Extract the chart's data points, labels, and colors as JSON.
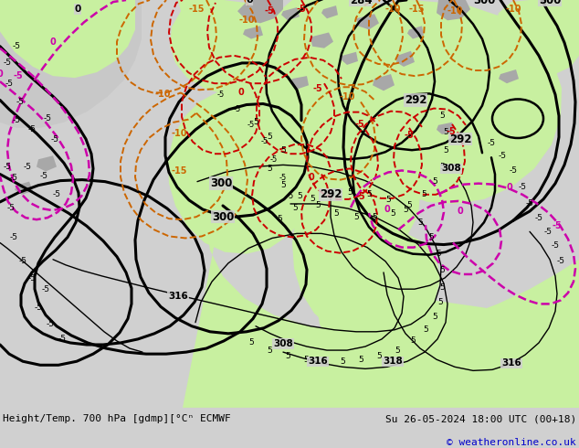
{
  "fig_width": 6.34,
  "fig_height": 4.9,
  "dpi": 100,
  "bg_color": "#d0d0d0",
  "map_bg": "#d0d0d0",
  "green_fill": "#c8f0a0",
  "gray_fill": "#a8a8a8",
  "bottom_label_left": "Height/Temp. 700 hPa [gdmp][°Cⁿ ECMWF",
  "bottom_label_right": "Su 26-05-2024 18:00 UTC (00+18)",
  "copyright": "© weatheronline.co.uk",
  "black_lw": 2.2,
  "thin_black_lw": 1.0,
  "temp_lw": 1.4,
  "magenta_lw": 1.8,
  "orange_color": "#cc6600",
  "red_color": "#cc0000",
  "magenta_color": "#cc00aa"
}
